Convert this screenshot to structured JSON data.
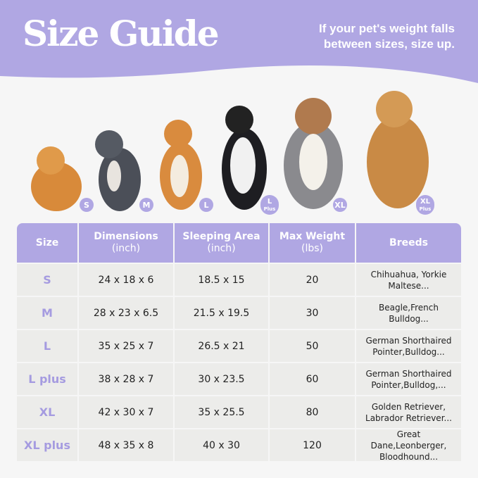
{
  "colors": {
    "accent": "#b0a7e3",
    "cell": "#ececea",
    "background": "#f6f6f6"
  },
  "header": {
    "title": "Size Guide",
    "subtitle_line1": "If your pet's weight falls",
    "subtitle_line2": "between sizes, size up."
  },
  "dogs": [
    {
      "badge": "S",
      "badge_sub": ""
    },
    {
      "badge": "M",
      "badge_sub": ""
    },
    {
      "badge": "L",
      "badge_sub": ""
    },
    {
      "badge": "L",
      "badge_sub": "Plus"
    },
    {
      "badge": "XL",
      "badge_sub": ""
    },
    {
      "badge": "XL",
      "badge_sub": "Plus"
    }
  ],
  "table": {
    "headers": [
      {
        "l1": "Size",
        "l2": ""
      },
      {
        "l1": "Dimensions",
        "l2": "(inch)"
      },
      {
        "l1": "Sleeping Area",
        "l2": "(inch)"
      },
      {
        "l1": "Max Weight",
        "l2": "(lbs)"
      },
      {
        "l1": "Breeds",
        "l2": ""
      }
    ],
    "rows": [
      {
        "size": "S",
        "dims": "24 x 18 x 6",
        "area": "18.5 x 15",
        "weight": "20",
        "b1": "Chihuahua, Yorkie",
        "b2": "Maltese..."
      },
      {
        "size": "M",
        "dims": "28 x 23 x 6.5",
        "area": "21.5 x 19.5",
        "weight": "30",
        "b1": "Beagle,French",
        "b2": "Bulldog..."
      },
      {
        "size": "L",
        "dims": "35 x 25 x 7",
        "area": "26.5 x 21",
        "weight": "50",
        "b1": "German Shorthaired",
        "b2": "Pointer,Bulldog..."
      },
      {
        "size": "L plus",
        "dims": "38 x 28 x 7",
        "area": "30 x 23.5",
        "weight": "60",
        "b1": "German Shorthaired",
        "b2": "Pointer,Bulldog,..."
      },
      {
        "size": "XL",
        "dims": "42 x 30 x 7",
        "area": "35 x 25.5",
        "weight": "80",
        "b1": "Golden Retriever,",
        "b2": "Labrador Retriever..."
      },
      {
        "size": "XL plus",
        "dims": "48 x 35 x 8",
        "area": "40 x 30",
        "weight": "120",
        "b1": "Great Dane,Leonberger,",
        "b2": "Bloodhound..."
      }
    ]
  }
}
